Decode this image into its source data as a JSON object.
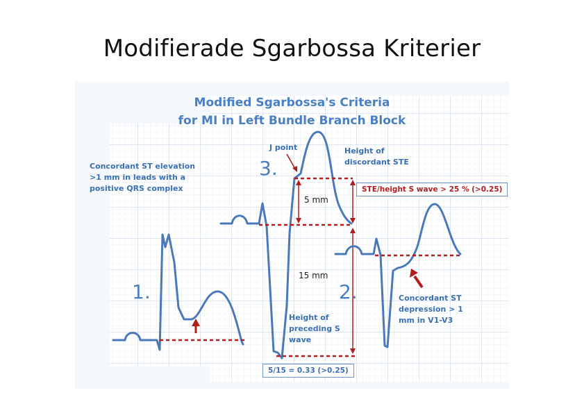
{
  "slide": {
    "title": "Modifierade Sgarbossa Kriterier"
  },
  "figure": {
    "title_line1": "Modified Sgarbossa's Criteria",
    "title_line2": "for MI in Left Bundle Branch Block",
    "panel1": {
      "number": "1.",
      "label_lines": [
        "Concordant ST elevation",
        ">1 mm in leads with a",
        "positive QRS complex"
      ]
    },
    "panel2": {
      "number": "2.",
      "label_lines": [
        "Concordant ST",
        "depression > 1",
        "mm in V1-V3"
      ]
    },
    "panel3": {
      "number": "3.",
      "j_point": "J point",
      "height_discordant_lines": [
        "Height of",
        "discordant STE"
      ],
      "ratio_box": "STE/height S wave > 25 % (>0.25)",
      "five_mm": "5 mm",
      "fifteen_mm": "15 mm",
      "height_s_lines": [
        "Height of",
        "preceding S",
        "wave"
      ],
      "calc_box": "5/15 =  0.33 (>0.25)"
    },
    "colors": {
      "trace": "#4a78b8",
      "marker": "#b11c1c",
      "grid_minor": "#dde8f3",
      "grid_major": "#c6d8ea",
      "label": "#3b6fb4"
    }
  }
}
